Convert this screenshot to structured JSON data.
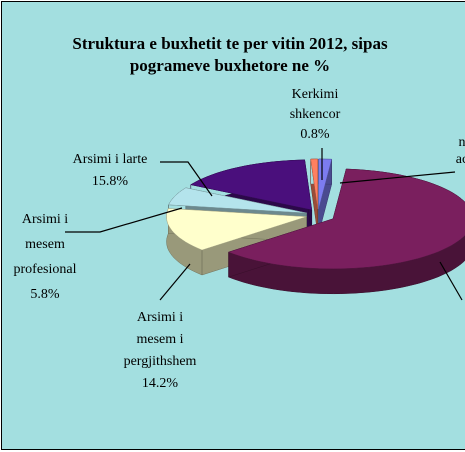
{
  "chart_data": {
    "type": "pie",
    "title": [
      "Struktura e buxhetit te per vitin 2012, sipas",
      "pogrameve buxhetore ne %"
    ],
    "categories": [
      [
        "n",
        "ac"
      ],
      null,
      [
        "Arsimi i",
        "mesem i",
        "pergjithshem"
      ],
      [
        "Arsimi i",
        "mesem",
        "profesional"
      ],
      [
        "Arsimi i larte"
      ],
      [
        "Kerkimi",
        "shkencor"
      ]
    ],
    "values": [
      1.5,
      61.9,
      14.2,
      5.8,
      15.8,
      0.8
    ],
    "value_labels": [
      null,
      null,
      "14.2%",
      "5.8%",
      "15.8%",
      "0.8%"
    ],
    "colors": [
      "#7c7cf0",
      "#7a1f5e",
      "#ffffcc",
      "#b4e4ec",
      "#4a0f7c",
      "#ff8060"
    ],
    "background": "#a3dfe0"
  }
}
